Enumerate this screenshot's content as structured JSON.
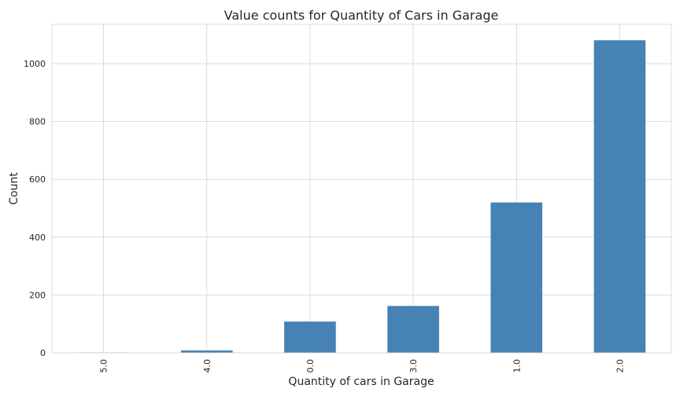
{
  "chart_data": {
    "type": "bar",
    "title": "Value counts for Quantity of Cars in Garage",
    "xlabel": "Quantity of cars in Garage",
    "ylabel": "Count",
    "categories": [
      "5.0",
      "4.0",
      "0.0",
      "3.0",
      "1.0",
      "2.0"
    ],
    "values": [
      1,
      8,
      108,
      162,
      520,
      1081
    ],
    "ylim": [
      0,
      1136
    ],
    "yticks": [
      0,
      200,
      400,
      600,
      800,
      1000
    ],
    "grid": true,
    "bar_color": "#4682b4"
  }
}
